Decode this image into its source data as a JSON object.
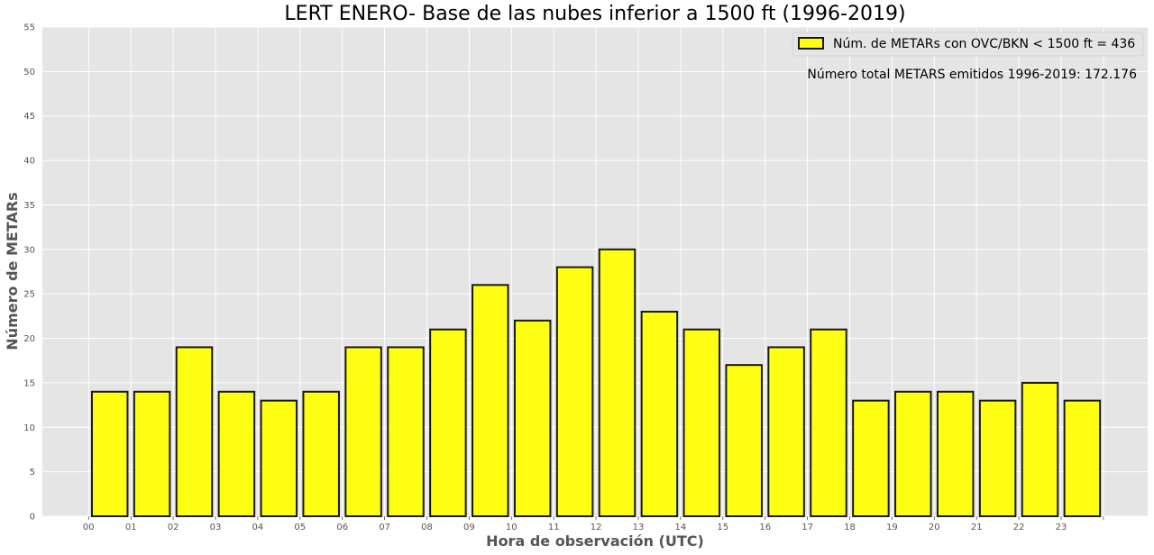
{
  "chart_data": {
    "type": "bar",
    "title": "LERT ENERO- Base de las nubes inferior a 1500 ft (1996-2019)",
    "xlabel": "Hora de observación (UTC)",
    "ylabel": "Número de METARs",
    "categories": [
      "00",
      "01",
      "02",
      "03",
      "04",
      "05",
      "06",
      "07",
      "08",
      "09",
      "10",
      "11",
      "12",
      "13",
      "14",
      "15",
      "16",
      "17",
      "18",
      "19",
      "20",
      "21",
      "22",
      "23"
    ],
    "series": [
      {
        "name": "Núm. de METARs con OVC/BKN < 1500 ft = 436",
        "values": [
          14,
          14,
          19,
          14,
          13,
          14,
          19,
          19,
          21,
          26,
          22,
          28,
          30,
          23,
          21,
          17,
          19,
          21,
          13,
          14,
          14,
          13,
          15,
          13
        ]
      }
    ],
    "ylim": [
      0,
      55
    ],
    "yticks": [
      "0",
      "5",
      "10",
      "15",
      "20",
      "25",
      "30",
      "35",
      "40",
      "45",
      "50",
      "55"
    ],
    "xticks": [
      "00",
      "01",
      "02",
      "03",
      "04",
      "05",
      "06",
      "07",
      "08",
      "09",
      "10",
      "11",
      "12",
      "13",
      "14",
      "15",
      "16",
      "17",
      "18",
      "19",
      "20",
      "21",
      "22",
      "23",
      ""
    ],
    "grid": true,
    "legend_position": "top-right",
    "annotation": "Número total METARS emitidos 1996-2019: 172.176",
    "colors": {
      "bar_fill": "#ffff14",
      "bar_edge": "#1a1a1a",
      "plot_background": "#e5e5e5",
      "grid": "#ffffff"
    }
  }
}
